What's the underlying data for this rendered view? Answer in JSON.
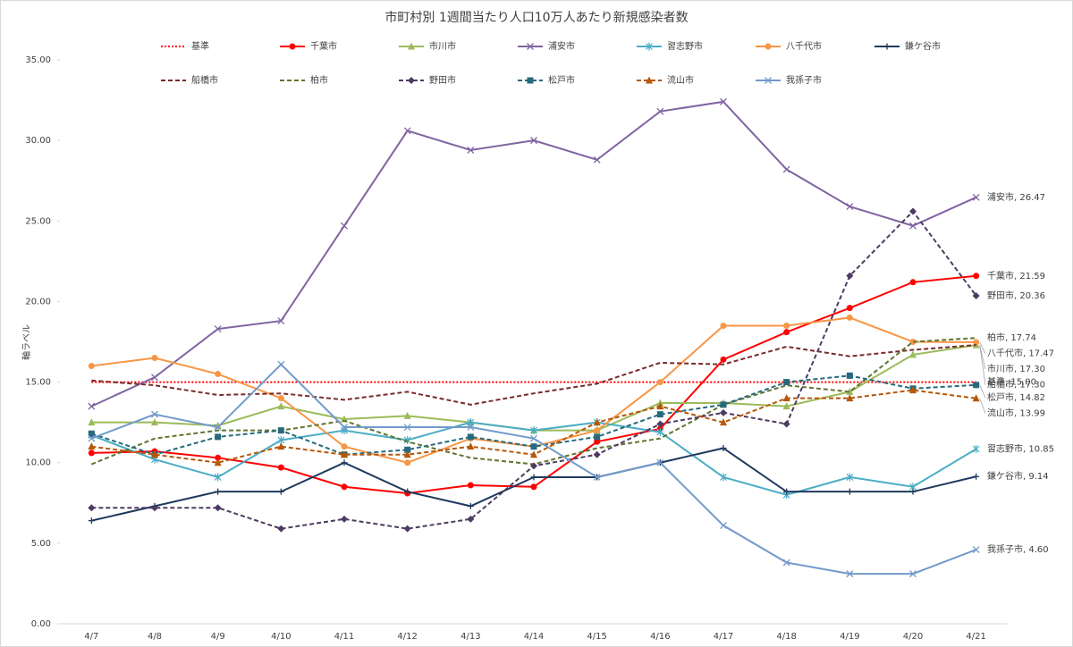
{
  "chart_data": {
    "type": "line",
    "title": "市町村別 1週間当たり人口10万人あたり新規感染者数",
    "y_label": "軸ラベル",
    "categories": [
      "4/7",
      "4/8",
      "4/9",
      "4/10",
      "4/11",
      "4/12",
      "4/13",
      "4/14",
      "4/15",
      "4/16",
      "4/17",
      "4/18",
      "4/19",
      "4/20",
      "4/21"
    ],
    "ylim": [
      0,
      35
    ],
    "yticks": [
      {
        "value": 0,
        "label": "0.00"
      },
      {
        "value": 5,
        "label": "5.00"
      },
      {
        "value": 10,
        "label": "10.00"
      },
      {
        "value": 15,
        "label": "15.00"
      },
      {
        "value": 20,
        "label": "20.00"
      },
      {
        "value": 25,
        "label": "25.00"
      },
      {
        "value": 30,
        "label": "30.00"
      },
      {
        "value": 35,
        "label": "35.00"
      }
    ],
    "legend": "top",
    "series": [
      {
        "name": "基準",
        "color": "#ff0000",
        "dash": "dot",
        "marker": "none",
        "values": [
          15,
          15,
          15,
          15,
          15,
          15,
          15,
          15,
          15,
          15,
          15,
          15,
          15,
          15,
          15
        ],
        "end_label": "基準, 15.00"
      },
      {
        "name": "千葉市",
        "color": "#ff0000",
        "dash": "solid",
        "marker": "circle",
        "values": [
          10.6,
          10.7,
          10.3,
          9.7,
          8.5,
          8.1,
          8.6,
          8.5,
          11.3,
          12.1,
          16.4,
          18.1,
          19.6,
          21.2,
          21.59
        ],
        "end_label": "千葉市, 21.59"
      },
      {
        "name": "市川市",
        "color": "#9bbb59",
        "dash": "solid",
        "marker": "triangle",
        "values": [
          12.5,
          12.5,
          12.3,
          13.5,
          12.7,
          12.9,
          12.5,
          12.0,
          12.0,
          13.7,
          13.7,
          13.5,
          14.4,
          16.7,
          17.3
        ],
        "end_label": "市川市, 17.30"
      },
      {
        "name": "浦安市",
        "color": "#8064a2",
        "dash": "solid",
        "marker": "x",
        "values": [
          13.5,
          15.3,
          18.3,
          18.8,
          24.7,
          30.6,
          29.4,
          30.0,
          28.8,
          31.8,
          32.4,
          28.2,
          25.9,
          24.7,
          26.47
        ],
        "end_label": "浦安市, 26.47"
      },
      {
        "name": "習志野市",
        "color": "#4bacc6",
        "dash": "solid",
        "marker": "star",
        "values": [
          11.7,
          10.2,
          9.1,
          11.4,
          12.0,
          11.4,
          12.5,
          12.0,
          12.5,
          11.9,
          9.1,
          8.0,
          9.1,
          8.5,
          10.85
        ],
        "end_label": "習志野市, 10.85"
      },
      {
        "name": "八千代市",
        "color": "#f79646",
        "dash": "solid",
        "marker": "circle",
        "values": [
          16.0,
          16.5,
          15.5,
          14.0,
          11.0,
          10.0,
          11.5,
          11.0,
          12.0,
          15.0,
          18.5,
          18.5,
          19.0,
          17.5,
          17.47
        ],
        "end_label": "八千代市, 17.47"
      },
      {
        "name": "鎌ケ谷市",
        "color": "#1f3a5f",
        "dash": "solid",
        "marker": "plus",
        "values": [
          6.4,
          7.3,
          8.2,
          8.2,
          10.0,
          8.2,
          7.3,
          9.1,
          9.1,
          10.0,
          10.9,
          8.2,
          8.2,
          8.2,
          9.14
        ],
        "end_label": "鎌ケ谷市, 9.14"
      },
      {
        "name": "船橋市",
        "color": "#772c2a",
        "dash": "dash",
        "marker": "none",
        "values": [
          15.1,
          14.8,
          14.2,
          14.3,
          13.9,
          14.4,
          13.6,
          14.3,
          14.9,
          16.2,
          16.1,
          17.2,
          16.6,
          17.0,
          17.3
        ],
        "end_label": "船橋市, 17.30"
      },
      {
        "name": "柏市",
        "color": "#5f7530",
        "dash": "dash",
        "marker": "none",
        "values": [
          9.9,
          11.5,
          12.0,
          12.0,
          12.6,
          11.3,
          10.3,
          9.9,
          10.9,
          11.5,
          13.6,
          14.8,
          14.4,
          17.5,
          17.74
        ],
        "end_label": "柏市, 17.74"
      },
      {
        "name": "野田市",
        "color": "#4d3b62",
        "dash": "dash",
        "marker": "diamond",
        "values": [
          7.2,
          7.2,
          7.2,
          5.9,
          6.5,
          5.9,
          6.5,
          9.8,
          10.5,
          12.4,
          13.1,
          12.4,
          21.6,
          25.6,
          20.36
        ],
        "end_label": "野田市, 20.36"
      },
      {
        "name": "松戸市",
        "color": "#276a7c",
        "dash": "dash",
        "marker": "square",
        "values": [
          11.8,
          10.5,
          11.6,
          12.0,
          10.5,
          10.8,
          11.6,
          11.0,
          11.6,
          13.0,
          13.6,
          15.0,
          15.4,
          14.6,
          14.82
        ],
        "end_label": "松戸市, 14.82"
      },
      {
        "name": "流山市",
        "color": "#b65708",
        "dash": "dash",
        "marker": "triangle",
        "values": [
          11.0,
          10.5,
          10.0,
          11.0,
          10.5,
          10.5,
          11.0,
          10.5,
          12.5,
          13.5,
          12.5,
          14.0,
          14.0,
          14.5,
          13.99
        ],
        "end_label": "流山市, 13.99"
      },
      {
        "name": "我孫子市",
        "color": "#729aca",
        "dash": "solid",
        "marker": "x",
        "values": [
          11.5,
          13.0,
          12.2,
          16.1,
          12.2,
          12.2,
          12.2,
          11.5,
          9.1,
          10.0,
          6.1,
          3.8,
          3.1,
          3.1,
          4.6
        ],
        "end_label": "我孫子市, 4.60"
      }
    ]
  }
}
